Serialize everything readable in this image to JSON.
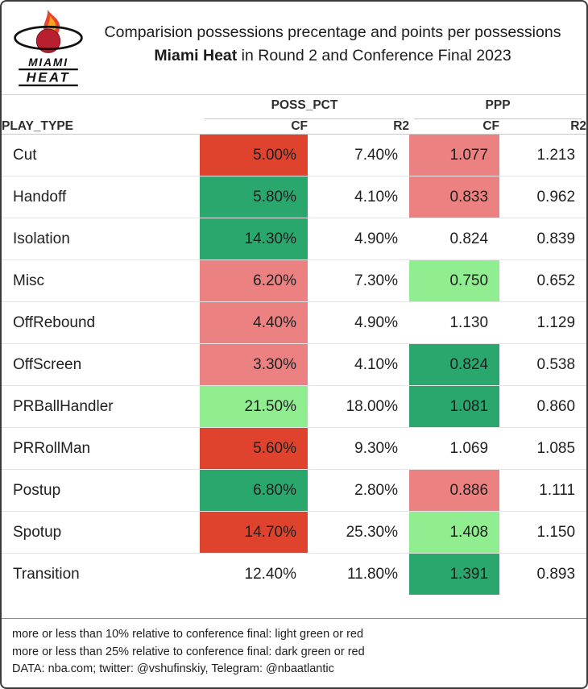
{
  "header": {
    "title_line1": "Comparision possessions precentage and points per possessions",
    "title_line2_bold": "Miami Heat",
    "title_line2_rest": " in Round 2 and Conference Final 2023",
    "logo_line1": "MIAMI",
    "logo_line2": "HEAT"
  },
  "table": {
    "group_headers": [
      "POSS_PCT",
      "PPP"
    ],
    "columns": [
      "PLAY_TYPE",
      "CF",
      "R2",
      "CF",
      "R2"
    ]
  },
  "colors": {
    "dark_red": "#e0432d",
    "light_red": "#ec8181",
    "dark_green": "#2aa76c",
    "light_green": "#90ee90"
  },
  "footer": {
    "note1": "more or less than 10% relative to conference final: light green or red",
    "note2": "more or less than 25% relative to conference final: dark green or red",
    "source": "DATA: nba.com; twitter: @vshufinskiy, Telegram: @nbaatlantic"
  },
  "chart_data": {
    "type": "table",
    "title": "Comparision possessions precentage and points per possessions Miami Heat in Round 2 and Conference Final 2023",
    "column_groups": [
      "POSS_PCT",
      "PPP"
    ],
    "columns": [
      "PLAY_TYPE",
      "POSS_PCT CF",
      "POSS_PCT R2",
      "PPP CF",
      "PPP R2"
    ],
    "color_legend": {
      "light_green_or_red": "more or less than 10% relative to conference final",
      "dark_green_or_red": "more or less than 25% relative to conference final"
    },
    "rows": [
      {
        "play_type": "Cut",
        "poss_pct_cf": "5.00%",
        "poss_pct_cf_color": "dark_red",
        "poss_pct_r2": "7.40%",
        "ppp_cf": "1.077",
        "ppp_cf_color": "light_red",
        "ppp_r2": "1.213"
      },
      {
        "play_type": "Handoff",
        "poss_pct_cf": "5.80%",
        "poss_pct_cf_color": "dark_green",
        "poss_pct_r2": "4.10%",
        "ppp_cf": "0.833",
        "ppp_cf_color": "light_red",
        "ppp_r2": "0.962"
      },
      {
        "play_type": "Isolation",
        "poss_pct_cf": "14.30%",
        "poss_pct_cf_color": "dark_green",
        "poss_pct_r2": "4.90%",
        "ppp_cf": "0.824",
        "ppp_cf_color": null,
        "ppp_r2": "0.839"
      },
      {
        "play_type": "Misc",
        "poss_pct_cf": "6.20%",
        "poss_pct_cf_color": "light_red",
        "poss_pct_r2": "7.30%",
        "ppp_cf": "0.750",
        "ppp_cf_color": "light_green",
        "ppp_r2": "0.652"
      },
      {
        "play_type": "OffRebound",
        "poss_pct_cf": "4.40%",
        "poss_pct_cf_color": "light_red",
        "poss_pct_r2": "4.90%",
        "ppp_cf": "1.130",
        "ppp_cf_color": null,
        "ppp_r2": "1.129"
      },
      {
        "play_type": "OffScreen",
        "poss_pct_cf": "3.30%",
        "poss_pct_cf_color": "light_red",
        "poss_pct_r2": "4.10%",
        "ppp_cf": "0.824",
        "ppp_cf_color": "dark_green",
        "ppp_r2": "0.538"
      },
      {
        "play_type": "PRBallHandler",
        "poss_pct_cf": "21.50%",
        "poss_pct_cf_color": "light_green",
        "poss_pct_r2": "18.00%",
        "ppp_cf": "1.081",
        "ppp_cf_color": "dark_green",
        "ppp_r2": "0.860"
      },
      {
        "play_type": "PRRollMan",
        "poss_pct_cf": "5.60%",
        "poss_pct_cf_color": "dark_red",
        "poss_pct_r2": "9.30%",
        "ppp_cf": "1.069",
        "ppp_cf_color": null,
        "ppp_r2": "1.085"
      },
      {
        "play_type": "Postup",
        "poss_pct_cf": "6.80%",
        "poss_pct_cf_color": "dark_green",
        "poss_pct_r2": "2.80%",
        "ppp_cf": "0.886",
        "ppp_cf_color": "light_red",
        "ppp_r2": "1.111"
      },
      {
        "play_type": "Spotup",
        "poss_pct_cf": "14.70%",
        "poss_pct_cf_color": "dark_red",
        "poss_pct_r2": "25.30%",
        "ppp_cf": "1.408",
        "ppp_cf_color": "light_green",
        "ppp_r2": "1.150"
      },
      {
        "play_type": "Transition",
        "poss_pct_cf": "12.40%",
        "poss_pct_cf_color": null,
        "poss_pct_r2": "11.80%",
        "ppp_cf": "1.391",
        "ppp_cf_color": "dark_green",
        "ppp_r2": "0.893"
      }
    ]
  }
}
